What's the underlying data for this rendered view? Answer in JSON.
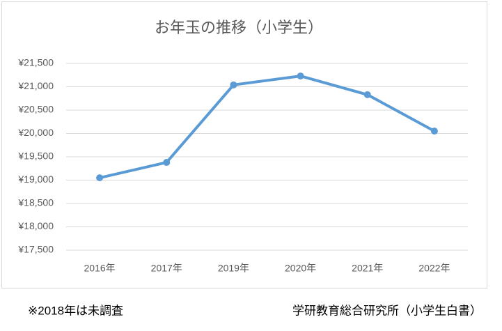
{
  "chart_data": {
    "type": "line",
    "title": "お年玉の推移（小学生）",
    "categories": [
      "2016年",
      "2017年",
      "2019年",
      "2020年",
      "2021年",
      "2022年"
    ],
    "values": [
      19050,
      19380,
      21040,
      21230,
      20830,
      20050
    ],
    "color": "#5b9bd5",
    "ylim": [
      17500,
      21500
    ],
    "yticks": [
      {
        "value": 17500,
        "label": "¥17,500"
      },
      {
        "value": 18000,
        "label": "¥18,000"
      },
      {
        "value": 18500,
        "label": "¥18,500"
      },
      {
        "value": 19000,
        "label": "¥19,000"
      },
      {
        "value": 19500,
        "label": "¥19,500"
      },
      {
        "value": 20000,
        "label": "¥20,000"
      },
      {
        "value": 20500,
        "label": "¥20,500"
      },
      {
        "value": 21000,
        "label": "¥21,000"
      },
      {
        "value": 21500,
        "label": "¥21,500"
      }
    ],
    "grid": true,
    "footnote": "※2018年は未調査",
    "source": "学研教育総合研究所（小学生白書）"
  }
}
